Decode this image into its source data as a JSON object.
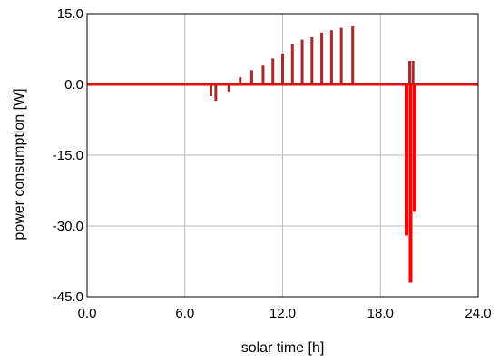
{
  "chart_data": {
    "type": "bar",
    "xlabel": "solar time [h]",
    "ylabel": "power consumption [W]",
    "xlim": [
      0,
      24
    ],
    "ylim": [
      -45,
      15
    ],
    "xticks": [
      "0.0",
      "6.0",
      "12.0",
      "18.0",
      "24.0"
    ],
    "yticks": [
      "15.0",
      "0.0",
      "-15.0",
      "-30.0",
      "-45.0"
    ],
    "grid": true,
    "baseline": 0,
    "series": [
      {
        "color": "#a52a2a",
        "x": [
          7.6,
          7.9,
          8.7,
          9.4,
          10.1,
          10.8,
          11.4,
          12.0,
          12.6,
          13.2,
          13.8,
          14.4,
          15.0,
          15.6,
          16.3,
          19.8,
          20.0
        ],
        "values": [
          -2.5,
          -3.5,
          -1.5,
          1.5,
          3.0,
          4.0,
          5.5,
          6.5,
          8.5,
          9.5,
          10.0,
          11.0,
          11.5,
          12.0,
          12.3,
          5.0,
          5.0
        ]
      },
      {
        "color": "#ff0000",
        "x": [
          19.6,
          19.85,
          20.1
        ],
        "values": [
          -32.0,
          -42.0,
          -27.0
        ]
      }
    ],
    "colors": {
      "baseline": "#dd1111",
      "grid": "#bbbbbb",
      "frame": "#000000"
    }
  }
}
